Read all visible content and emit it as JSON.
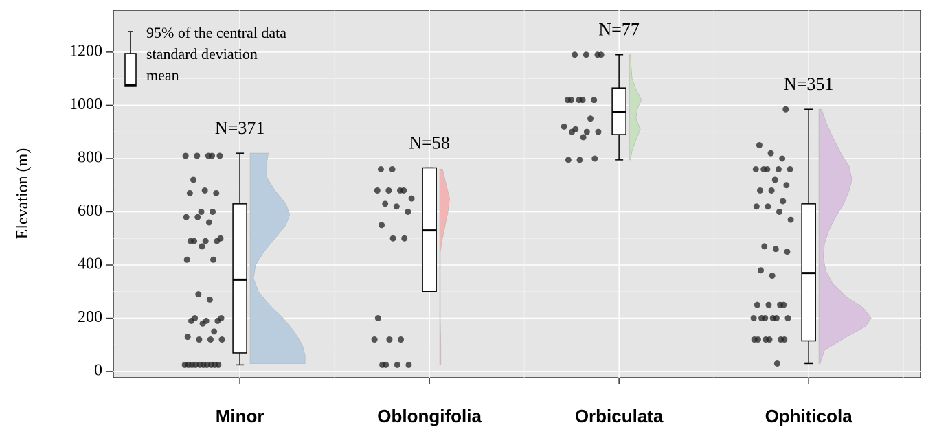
{
  "chart_data": {
    "type": "raincloud",
    "y_label": "Elevation (m)",
    "ylim": [
      -23,
      1357
    ],
    "yticks": [
      0,
      200,
      400,
      600,
      800,
      1000,
      1200
    ],
    "xlim": [
      0.333,
      4.59
    ],
    "grid": true,
    "legend": {
      "items": [
        "95% of the central data",
        "standard deviation",
        "mean"
      ],
      "position": "upper left"
    },
    "categories": [
      "Minor",
      "Oblongifolia",
      "Orbiculata",
      "Ophiticola"
    ],
    "groups": [
      {
        "n_label": "N=371",
        "color": "#b9cddf",
        "box": {
          "whisker_low": 25,
          "q1": 70,
          "median": 345,
          "q3": 630,
          "whisker_high": 820
        },
        "points": [
          25,
          25,
          25,
          25,
          25,
          25,
          25,
          25,
          25,
          25,
          120,
          120,
          120,
          130,
          150,
          180,
          190,
          190,
          190,
          200,
          200,
          270,
          290,
          420,
          420,
          470,
          490,
          490,
          490,
          490,
          500,
          560,
          580,
          580,
          600,
          600,
          670,
          670,
          680,
          720,
          810,
          810,
          810,
          810,
          810
        ],
        "density": {
          "y": [
            30,
            60,
            100,
            150,
            200,
            250,
            300,
            350,
            400,
            450,
            500,
            550,
            590,
            630,
            680,
            730,
            780,
            820
          ],
          "width": [
            1,
            1,
            0.95,
            0.8,
            0.6,
            0.35,
            0.15,
            0.06,
            0.1,
            0.25,
            0.45,
            0.65,
            0.72,
            0.65,
            0.45,
            0.3,
            0.3,
            0.33
          ]
        }
      },
      {
        "n_label": "N=58",
        "color": "#f1b5b5",
        "box": {
          "whisker_low": 300,
          "q1": 300,
          "median": 530,
          "q3": 765,
          "whisker_high": 765
        },
        "points": [
          25,
          25,
          25,
          25,
          120,
          120,
          120,
          200,
          500,
          500,
          550,
          600,
          620,
          630,
          650,
          680,
          680,
          680,
          680,
          760,
          760
        ],
        "density": {
          "y": [
            25,
            100,
            200,
            300,
            400,
            450,
            500,
            550,
            600,
            650,
            700,
            760
          ],
          "width": [
            0.02,
            0.02,
            0.01,
            0.01,
            0.01,
            0.01,
            0.05,
            0.1,
            0.15,
            0.18,
            0.12,
            0.05
          ]
        }
      },
      {
        "n_label": "N=77",
        "color": "#c8e0c0",
        "box": {
          "whisker_low": 795,
          "q1": 890,
          "median": 975,
          "q3": 1065,
          "whisker_high": 1190
        },
        "points": [
          795,
          795,
          800,
          880,
          900,
          900,
          900,
          910,
          920,
          950,
          1020,
          1020,
          1020,
          1020,
          1020,
          1190,
          1190,
          1190,
          1190
        ],
        "density": {
          "y": [
            795,
            830,
            870,
            910,
            950,
            990,
            1020,
            1060,
            1100,
            1150,
            1190
          ],
          "width": [
            0.02,
            0.05,
            0.12,
            0.2,
            0.12,
            0.15,
            0.22,
            0.12,
            0.05,
            0.03,
            0.02
          ]
        }
      },
      {
        "n_label": "N=351",
        "color": "#d9c2dd",
        "box": {
          "whisker_low": 30,
          "q1": 115,
          "median": 370,
          "q3": 630,
          "whisker_high": 985
        },
        "points": [
          30,
          120,
          120,
          120,
          120,
          120,
          120,
          200,
          200,
          200,
          200,
          200,
          200,
          250,
          250,
          250,
          250,
          360,
          380,
          450,
          460,
          470,
          570,
          600,
          620,
          620,
          640,
          680,
          680,
          700,
          720,
          760,
          760,
          760,
          760,
          760,
          800,
          820,
          850,
          985
        ],
        "density": {
          "y": [
            30,
            80,
            130,
            170,
            200,
            240,
            280,
            330,
            380,
            430,
            480,
            530,
            580,
            630,
            680,
            720,
            770,
            820,
            880,
            940,
            985
          ],
          "width": [
            0.02,
            0.1,
            0.5,
            0.85,
            0.95,
            0.8,
            0.5,
            0.25,
            0.12,
            0.08,
            0.1,
            0.18,
            0.3,
            0.45,
            0.55,
            0.6,
            0.55,
            0.4,
            0.25,
            0.12,
            0.05
          ]
        }
      }
    ]
  }
}
